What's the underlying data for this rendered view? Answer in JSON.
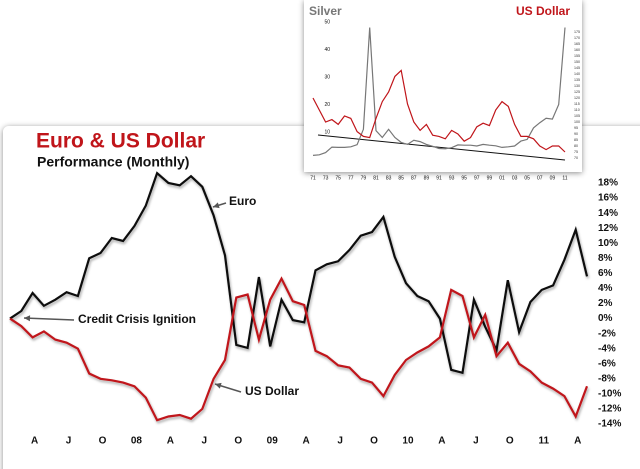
{
  "chart_data": [
    {
      "type": "line",
      "title": "Euro & US Dollar",
      "subtitle": "Performance (Monthly)",
      "categories": [
        null,
        null,
        "A",
        null,
        null,
        "J",
        null,
        null,
        "O",
        null,
        null,
        "08",
        null,
        null,
        "A",
        null,
        null,
        "J",
        null,
        null,
        "O",
        null,
        null,
        "09",
        null,
        null,
        "A",
        null,
        null,
        "J",
        null,
        null,
        "O",
        null,
        null,
        "10",
        null,
        null,
        "A",
        null,
        null,
        "J",
        null,
        null,
        "O",
        null,
        null,
        "11",
        null,
        null,
        "A",
        null
      ],
      "series": [
        {
          "name": "Euro",
          "color": "#111111",
          "values": [
            0,
            1,
            3.4,
            1.7,
            2.5,
            3.5,
            3,
            8,
            8.7,
            10.7,
            10.3,
            12.3,
            15,
            19.3,
            18,
            17.7,
            18.9,
            17.5,
            13.7,
            8.4,
            -3.5,
            -3.9,
            5.5,
            -3.7,
            2.5,
            -0.2,
            -0.5,
            6.4,
            7.2,
            7.6,
            9.1,
            11,
            11.5,
            13.5,
            8.2,
            4.7,
            3,
            2.3,
            0,
            -6.8,
            -7.2,
            2.5,
            -1.1,
            -4.2,
            5.1,
            -1.8,
            2.2,
            3.8,
            4.4,
            7.8,
            11.8,
            5.6
          ]
        },
        {
          "name": "US Dollar",
          "color": "#c0151a",
          "values": [
            0,
            -1,
            -2.5,
            -1.7,
            -2.8,
            -3.2,
            -4,
            -7.3,
            -8,
            -8.2,
            -8.5,
            -9,
            -10.5,
            -13.5,
            -13,
            -12.8,
            -13.3,
            -12,
            -8,
            -5.5,
            2.8,
            3.2,
            -2.8,
            2.5,
            5.3,
            2.3,
            1.8,
            -4.3,
            -5,
            -6.2,
            -6.5,
            -8,
            -8.5,
            -10.3,
            -7.5,
            -5.5,
            -4.5,
            -3.7,
            -2.5,
            3.8,
            3,
            -2.5,
            0.5,
            -5,
            -3.2,
            -6,
            -7,
            -8.5,
            -9.3,
            -10.3,
            -13,
            -9
          ]
        }
      ],
      "annotations": [
        "Euro",
        "Credit Crisis Ignition",
        "US Dollar"
      ],
      "ylim": [
        -14,
        18
      ],
      "yticks": [
        {
          "value": 18,
          "label": "18%"
        },
        {
          "value": 16,
          "label": "16%"
        },
        {
          "value": 14,
          "label": "14%"
        },
        {
          "value": 12,
          "label": "12%"
        },
        {
          "value": 10,
          "label": "10%"
        },
        {
          "value": 8,
          "label": "8%"
        },
        {
          "value": 6,
          "label": "6%"
        },
        {
          "value": 4,
          "label": "4%"
        },
        {
          "value": 2,
          "label": "2%"
        },
        {
          "value": 0,
          "label": "0%"
        },
        {
          "value": -2,
          "label": "-2%"
        },
        {
          "value": -4,
          "label": "-4%"
        },
        {
          "value": -6,
          "label": "-6%"
        },
        {
          "value": -8,
          "label": "-8%"
        },
        {
          "value": -10,
          "label": "-10%"
        },
        {
          "value": -12,
          "label": "-12%"
        },
        {
          "value": -14,
          "label": "-14%"
        }
      ]
    },
    {
      "type": "line",
      "categories": [
        "71",
        null,
        "73",
        null,
        "75",
        null,
        "77",
        null,
        "79",
        null,
        "81",
        null,
        "83",
        null,
        "85",
        null,
        "87",
        null,
        "89",
        null,
        "91",
        null,
        "93",
        null,
        "95",
        null,
        "97",
        null,
        "99",
        null,
        "01",
        null,
        "03",
        null,
        "05",
        null,
        "07",
        null,
        "09",
        null,
        "11"
      ],
      "series": [
        {
          "name": "Silver",
          "color": "#777777",
          "values": [
            1.5,
            1.7,
            2.5,
            4.5,
            4.4,
            4.4,
            4.6,
            5.4,
            11,
            48,
            10.5,
            8,
            11,
            8,
            6.2,
            5.5,
            7,
            6.5,
            5.5,
            4.8,
            4,
            3.9,
            4.3,
            5.3,
            5.2,
            5.2,
            4.9,
            5.5,
            5.2,
            5,
            4.4,
            4.6,
            4.9,
            6.7,
            7.3,
            11.5,
            13.4,
            15,
            14.7,
            20,
            48
          ]
        },
        {
          "name": "US Dollar",
          "color": "#c0151a",
          "axis": "y2",
          "values": [
            120,
            110,
            100,
            102,
            98,
            105,
            103,
            92,
            88,
            87,
            103,
            117,
            125,
            138,
            143,
            115,
            100,
            93,
            98,
            89,
            88,
            86,
            93,
            90,
            84,
            87,
            96,
            99,
            97,
            110,
            117,
            113,
            98,
            88,
            88,
            86,
            80,
            77,
            80,
            80,
            75
          ]
        }
      ],
      "ylim": [
        0,
        50
      ],
      "yticks": [
        10,
        20,
        30,
        40,
        50
      ],
      "y2lim": [
        70,
        175
      ],
      "y2ticks": [
        70,
        75,
        80,
        85,
        90,
        95,
        100,
        105,
        110,
        115,
        120,
        125,
        130,
        135,
        140,
        145,
        150,
        155,
        160,
        165,
        170,
        175
      ]
    }
  ]
}
